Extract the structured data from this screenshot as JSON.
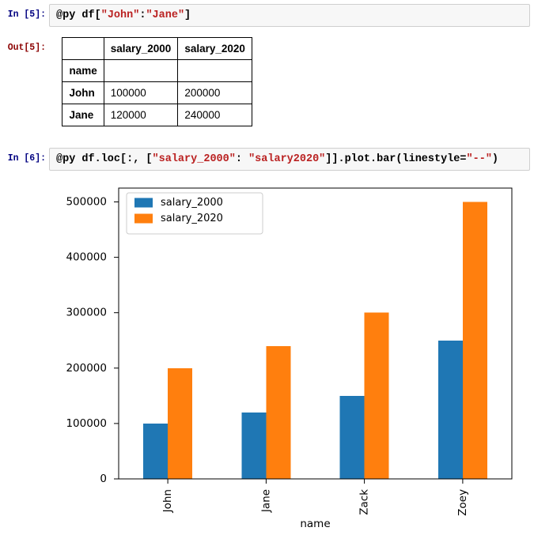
{
  "notebook": {
    "cells": [
      {
        "kind": "code-input",
        "prompt": "In [5]:",
        "code_tokens": [
          {
            "c": "plain",
            "t": "@py df["
          },
          {
            "c": "string",
            "t": "\"John\""
          },
          {
            "c": "plain",
            "t": ":"
          },
          {
            "c": "string",
            "t": "\"Jane\""
          },
          {
            "c": "plain",
            "t": "]"
          }
        ]
      },
      {
        "kind": "output",
        "prompt": "Out[5]:",
        "table": {
          "columns": [
            "salary_2000",
            "salary_2020"
          ],
          "index_name": "name",
          "rows": [
            {
              "index": "John",
              "values": [
                "100000",
                "200000"
              ]
            },
            {
              "index": "Jane",
              "values": [
                "120000",
                "240000"
              ]
            }
          ]
        }
      },
      {
        "kind": "code-input",
        "prompt": "In [6]:",
        "code_tokens": [
          {
            "c": "plain",
            "t": "@py df.loc[:, ["
          },
          {
            "c": "string",
            "t": "\"salary_2000\""
          },
          {
            "c": "plain",
            "t": ": "
          },
          {
            "c": "string",
            "t": "\"salary2020\""
          },
          {
            "c": "plain",
            "t": "]].plot.bar(linestyle="
          },
          {
            "c": "string",
            "t": "\"--\""
          },
          {
            "c": "plain",
            "t": ")"
          }
        ]
      }
    ]
  },
  "chart_data": {
    "type": "bar",
    "categories": [
      "John",
      "Jane",
      "Zack",
      "Zoey"
    ],
    "series": [
      {
        "name": "salary_2000",
        "color": "#1f77b4",
        "values": [
          100000,
          120000,
          150000,
          250000
        ]
      },
      {
        "name": "salary_2020",
        "color": "#ff7f0e",
        "values": [
          200000,
          240000,
          300000,
          500000
        ]
      }
    ],
    "title": "",
    "xlabel": "name",
    "ylabel": "",
    "ylim": [
      0,
      525000
    ],
    "yticks": [
      0,
      100000,
      200000,
      300000,
      400000,
      500000
    ],
    "xtick_rotation": 90,
    "grid": false,
    "legend_position": "upper left"
  },
  "colors": {
    "input_prompt": "#000080",
    "output_prompt": "#8B0000",
    "code_plain": "#000000",
    "code_string": "#BA2121",
    "input_bg": "#f7f7f7",
    "input_border": "#cfcfcf",
    "table_border": "#000000",
    "axis": "#000000",
    "legend_border": "#cccccc",
    "legend_bg": "#ffffff"
  }
}
